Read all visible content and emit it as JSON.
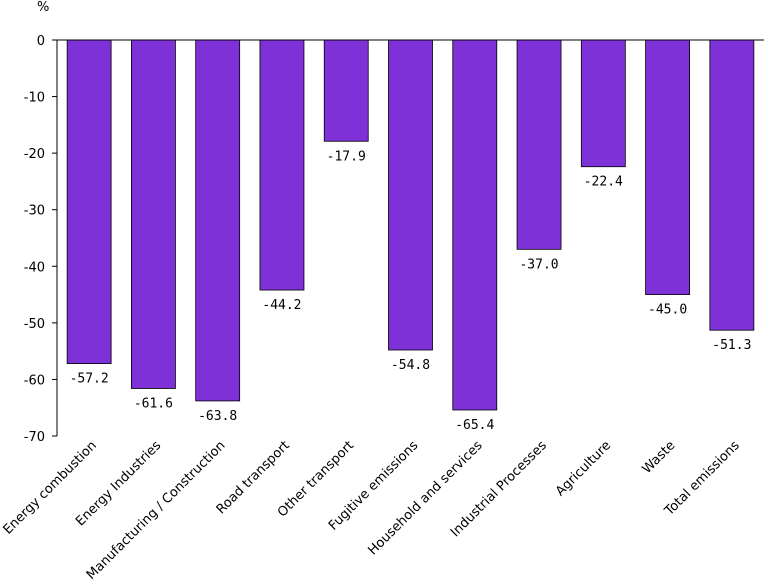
{
  "chart_data": {
    "type": "bar",
    "ylabel": "%",
    "ylim": [
      -70,
      0
    ],
    "yticks": [
      0,
      -10,
      -20,
      -30,
      -40,
      -50,
      -60,
      -70
    ],
    "grid": false,
    "categories": [
      "Energy combustion",
      "Energy Industries",
      "Manufacturing / Construction",
      "Road transport",
      "Other transport",
      "Fugitive emissions",
      "Household and services",
      "Industrial Processes",
      "Agriculture",
      "Waste",
      "Total emissions"
    ],
    "values": [
      -57.2,
      -61.6,
      -63.8,
      -44.2,
      -17.9,
      -54.8,
      -65.4,
      -37.0,
      -22.4,
      -45.0,
      -51.3
    ],
    "data_labels": [
      "-57.2",
      "-61.6",
      "-63.8",
      "-44.2",
      "-17.9",
      "-54.8",
      "-65.4",
      "-37.0",
      "-22.4",
      "-45.0",
      "-51.3"
    ],
    "bar_color": "#7f31d8"
  }
}
